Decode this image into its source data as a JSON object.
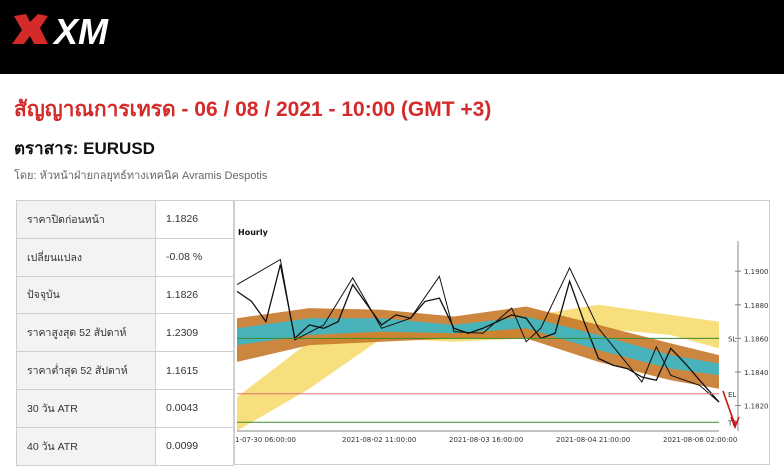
{
  "brand": {
    "name": "XM",
    "header_color": "#000000",
    "accent": "#d42a2a"
  },
  "page": {
    "title": "สัญญาณการเทรด - 06 / 08 / 2021 - 10:00 (GMT +3)",
    "instrument_label": "ตราสาร: EURUSD",
    "byline": "โดย: หัวหน้าฝ่ายกลยุทธ์ทางเทคนิค Avramis Despotis"
  },
  "stats": [
    {
      "label": "ราคาปิดก่อนหน้า",
      "value": "1.1826"
    },
    {
      "label": "เปลี่ยนแปลง",
      "value": "-0.08 %"
    },
    {
      "label": "ปัจจุบัน",
      "value": "1.1826"
    },
    {
      "label": "ราคาสูงสุด 52 สัปดาห์",
      "value": "1.2309"
    },
    {
      "label": "ราคาต่ำสุด 52 สัปดาห์",
      "value": "1.1615"
    },
    {
      "label": "30 วัน ATR",
      "value": "0.0043"
    },
    {
      "label": "40 วัน ATR",
      "value": "0.0099"
    }
  ],
  "chart_data": {
    "type": "line",
    "title": "Hourly",
    "x_ticks": [
      "1-07-30 06:00:00",
      "2021-08-02 11:00:00",
      "2021-08-03 16:00:00",
      "2021-08-04 21:00:00",
      "2021-08-06 02:00:00"
    ],
    "y_ticks": [
      "1.1900",
      "1.1880",
      "1.1860",
      "1.1840",
      "1.1820"
    ],
    "ylim": [
      1.1806,
      1.1918
    ],
    "levels": [
      {
        "name": "SL",
        "value": 1.186,
        "color": "#3a8a2a"
      },
      {
        "name": "EL",
        "value": 1.1827,
        "color": "#e07070"
      },
      {
        "name": "TP",
        "value": 1.181,
        "color": "#3a8a2a"
      }
    ],
    "series": [
      {
        "color": "#111111",
        "x": [
          0,
          3,
          6,
          9,
          12,
          15,
          18,
          21,
          24,
          27,
          30,
          33,
          36,
          39,
          42,
          45,
          48,
          51,
          54,
          57,
          60,
          63,
          66,
          69,
          72,
          75,
          78,
          81,
          84,
          87,
          90,
          93,
          96,
          100
        ],
        "values": [
          1.1888,
          1.1882,
          1.187,
          1.1904,
          1.186,
          1.1868,
          1.1866,
          1.187,
          1.1892,
          1.188,
          1.1868,
          1.1874,
          1.1872,
          1.1882,
          1.1884,
          1.1866,
          1.1863,
          1.1866,
          1.187,
          1.1874,
          1.1872,
          1.186,
          1.1863,
          1.1894,
          1.187,
          1.1848,
          1.1844,
          1.1842,
          1.1837,
          1.1835,
          1.1854,
          1.1845,
          1.1835,
          1.1822
        ]
      },
      {
        "color": "#111111",
        "x": [
          0,
          9,
          12,
          18,
          24,
          30,
          36,
          42,
          45,
          51,
          57,
          60,
          63,
          69,
          75,
          84,
          87,
          90,
          96,
          100
        ],
        "values": [
          1.1892,
          1.1907,
          1.1859,
          1.1868,
          1.1896,
          1.1866,
          1.1872,
          1.1897,
          1.1864,
          1.1863,
          1.1878,
          1.1858,
          1.1866,
          1.1902,
          1.1866,
          1.1834,
          1.1855,
          1.1838,
          1.1832,
          1.1822
        ]
      }
    ],
    "bands": [
      {
        "color": "#f5dc6e",
        "x": [
          0,
          15,
          30,
          45,
          60,
          75,
          90,
          100
        ],
        "upper": [
          1.1825,
          1.1858,
          1.187,
          1.1868,
          1.1873,
          1.188,
          1.1874,
          1.187
        ],
        "lower": [
          1.1805,
          1.183,
          1.186,
          1.1858,
          1.186,
          1.1866,
          1.1862,
          1.1854
        ]
      },
      {
        "color": "#c8792a",
        "x": [
          0,
          15,
          30,
          45,
          60,
          75,
          90,
          100
        ],
        "upper": [
          1.1872,
          1.1878,
          1.1877,
          1.1873,
          1.1879,
          1.1868,
          1.1857,
          1.185
        ],
        "lower": [
          1.1846,
          1.1856,
          1.1858,
          1.186,
          1.186,
          1.1846,
          1.1835,
          1.183
        ]
      },
      {
        "color": "#3ab8c8",
        "x": [
          0,
          15,
          30,
          45,
          60,
          75,
          90,
          100
        ],
        "upper": [
          1.1866,
          1.1872,
          1.1872,
          1.1868,
          1.1873,
          1.1862,
          1.185,
          1.1845
        ],
        "lower": [
          1.1856,
          1.1862,
          1.1864,
          1.1863,
          1.1866,
          1.1853,
          1.1842,
          1.1838
        ]
      }
    ]
  }
}
